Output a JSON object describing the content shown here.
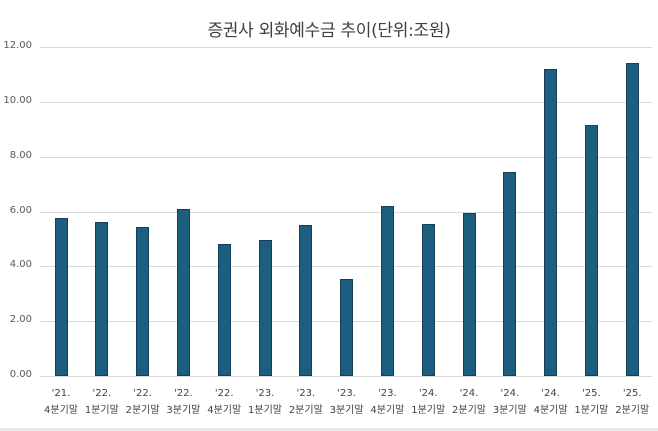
{
  "title": "증권사 외화예수금 추이(단위:조원)",
  "chart_data": {
    "type": "bar",
    "title": "증권사 외화예수금 추이(단위:조원)",
    "xlabel": "",
    "ylabel": "",
    "ylim": [
      0,
      12
    ],
    "yticks": [
      "0.00",
      "2.00",
      "4.00",
      "6.00",
      "8.00",
      "10.00",
      "12.00"
    ],
    "grid": true,
    "legend": null,
    "bar_color": "#1b5e80",
    "categories": [
      "'21. 4분기말",
      "'22. 1분기말",
      "'22. 2분기말",
      "'22. 3분기말",
      "'22. 4분기말",
      "'23. 1분기말",
      "'23. 2분기말",
      "'23. 3분기말",
      "'23. 4분기말",
      "'24. 1분기말",
      "'24. 2분기말",
      "'24. 3분기말",
      "'24. 4분기말",
      "'25. 1분기말",
      "'25. 2분기말"
    ],
    "category_lines": [
      [
        "'21.",
        "4분기말"
      ],
      [
        "'22.",
        "1분기말"
      ],
      [
        "'22.",
        "2분기말"
      ],
      [
        "'22.",
        "3분기말"
      ],
      [
        "'22.",
        "4분기말"
      ],
      [
        "'23.",
        "1분기말"
      ],
      [
        "'23.",
        "2분기말"
      ],
      [
        "'23.",
        "3분기말"
      ],
      [
        "'23.",
        "4분기말"
      ],
      [
        "'24.",
        "1분기말"
      ],
      [
        "'24.",
        "2분기말"
      ],
      [
        "'24.",
        "3분기말"
      ],
      [
        "'24.",
        "4분기말"
      ],
      [
        "'25.",
        "1분기말"
      ],
      [
        "'25.",
        "2분기말"
      ]
    ],
    "values": [
      5.75,
      5.6,
      5.45,
      6.1,
      4.8,
      4.95,
      5.5,
      3.55,
      6.2,
      5.55,
      5.95,
      7.45,
      11.2,
      9.15,
      11.4
    ]
  }
}
